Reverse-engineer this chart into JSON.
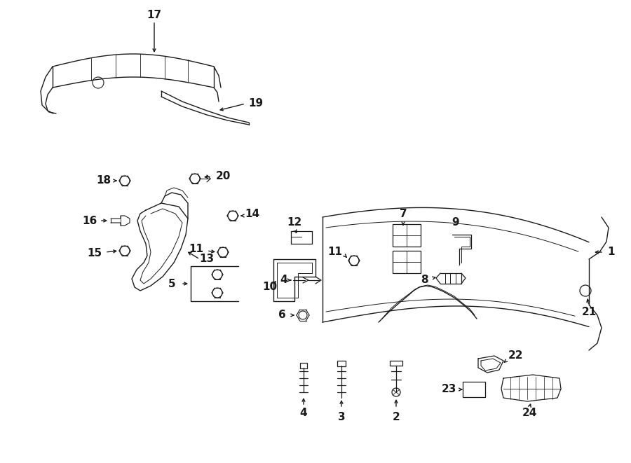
{
  "bg_color": "#ffffff",
  "line_color": "#1a1a1a",
  "lw": 1.0,
  "fs": 11,
  "fig_w": 9.0,
  "fig_h": 6.61
}
